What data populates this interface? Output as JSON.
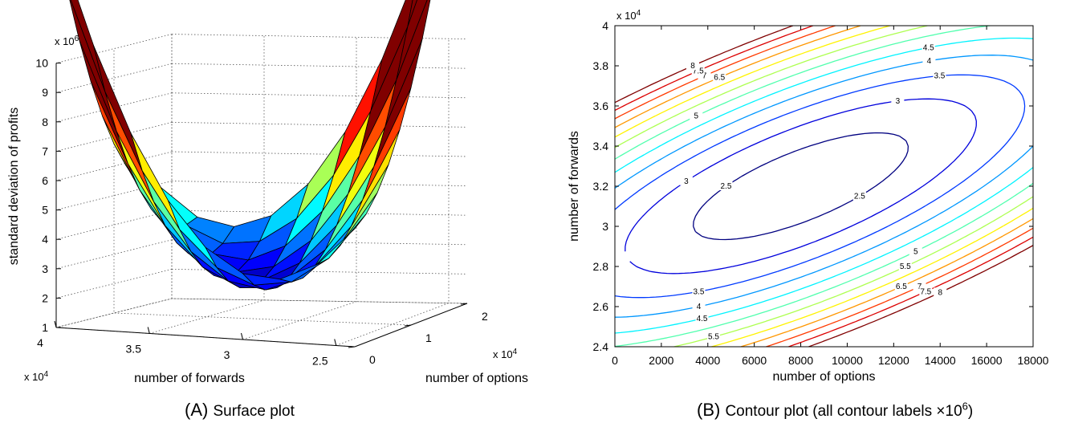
{
  "chart_data": [
    {
      "type": "surface",
      "multipliers": {
        "z": "x 10",
        "z_exp": "6",
        "forwards": "x 10",
        "forwards_exp": "4",
        "options": "x 10",
        "options_exp": "4"
      },
      "xlabel": "number of forwards",
      "ylabel": "number of options",
      "zlabel": "standard deviation of profits",
      "xlim": [
        2.4,
        4
      ],
      "ylim": [
        0,
        2
      ],
      "zlim": [
        1,
        10
      ],
      "x_ticks": [
        "4",
        "3.5",
        "3",
        "2.5"
      ],
      "y_ticks": [
        "0",
        "1",
        "2"
      ],
      "z_ticks": [
        "1",
        "2",
        "3",
        "4",
        "5",
        "6",
        "7",
        "8",
        "9",
        "10"
      ],
      "grid": true,
      "forwards": [
        4.0,
        3.8,
        3.6,
        3.4,
        3.2,
        3.0,
        2.8,
        2.6,
        2.4
      ],
      "options": [
        0.0,
        0.2,
        0.4,
        0.6,
        0.8,
        1.0,
        1.2,
        1.4,
        1.6,
        1.8
      ],
      "z_description": "standard deviation of profits (x10^6), rows = forwards, cols = options"
    },
    {
      "type": "contour",
      "xlabel": "number of options",
      "ylabel": "number of forwards",
      "y_multiplier": "x 10",
      "y_multiplier_exp": "4",
      "xlim": [
        0,
        18000
      ],
      "ylim": [
        24000,
        40000
      ],
      "x_ticks": [
        "0",
        "2000",
        "4000",
        "6000",
        "8000",
        "10000",
        "12000",
        "14000",
        "16000",
        "18000"
      ],
      "y_ticks": [
        "2.4",
        "2.6",
        "2.8",
        "3",
        "3.2",
        "3.4",
        "3.6",
        "3.8",
        "4"
      ],
      "levels": [
        2.5,
        3,
        3.5,
        4,
        4.5,
        5,
        5.5,
        6,
        6.5,
        7,
        7.5,
        8
      ],
      "level_labels": [
        "2.5",
        "3",
        "3.5",
        "4",
        "4.5",
        "5",
        "5.5",
        "6",
        "6.5",
        "7",
        "7.5",
        "8"
      ],
      "min_point": {
        "options": 8000,
        "forwards": 32000,
        "value": 2.2
      }
    }
  ],
  "captions": {
    "a_letter": "(A)",
    "a_text": "Surface plot",
    "b_letter": "(B)",
    "b_text": "Contour plot (all contour labels ×10",
    "b_exp": "6",
    "b_close": ")"
  }
}
